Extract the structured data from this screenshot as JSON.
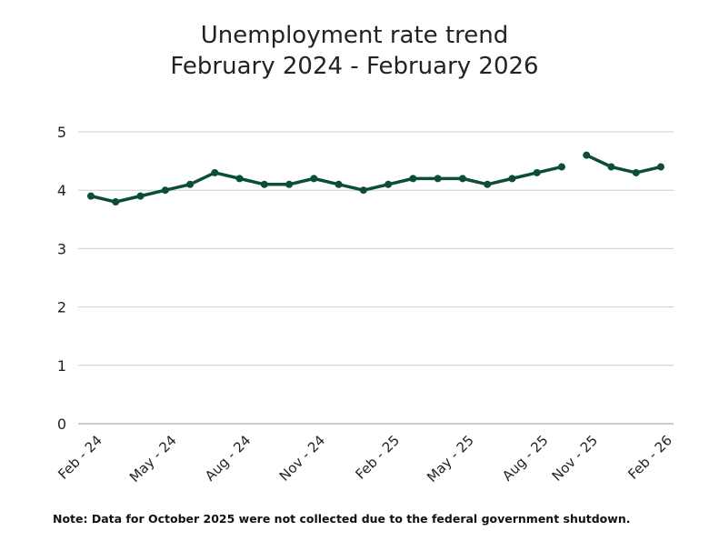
{
  "chart_data": {
    "type": "line",
    "title": "Unemployment rate trend",
    "subtitle": "February 2024 - February 2026",
    "xlabel": "",
    "ylabel": "",
    "ylim": [
      0,
      5
    ],
    "yticks": [
      0,
      1,
      2,
      3,
      4,
      5
    ],
    "grid": true,
    "legend": "none",
    "line_color": "#0b4d3c",
    "x": [
      "Feb-24",
      "Mar-24",
      "Apr-24",
      "May-24",
      "Jun-24",
      "Jul-24",
      "Aug-24",
      "Sep-24",
      "Oct-24",
      "Nov-24",
      "Dec-24",
      "Jan-25",
      "Feb-25",
      "Mar-25",
      "Apr-25",
      "May-25",
      "Jun-25",
      "Jul-25",
      "Aug-25",
      "Sep-25",
      "Nov-25",
      "Dec-25",
      "Jan-26",
      "Feb-26"
    ],
    "values": [
      3.9,
      3.8,
      3.9,
      4.0,
      4.1,
      4.3,
      4.2,
      4.1,
      4.1,
      4.2,
      4.1,
      4.0,
      4.1,
      4.2,
      4.2,
      4.2,
      4.1,
      4.2,
      4.3,
      4.4,
      4.6,
      4.4,
      4.3,
      4.4
    ],
    "gap_after": "Sep-25",
    "xtick_labels": [
      {
        "at": "Feb-24",
        "label": "Feb - 24"
      },
      {
        "at": "May-24",
        "label": "May - 24"
      },
      {
        "at": "Aug-24",
        "label": "Aug - 24"
      },
      {
        "at": "Nov-24",
        "label": "Nov - 24"
      },
      {
        "at": "Feb-25",
        "label": "Feb - 25"
      },
      {
        "at": "May-25",
        "label": "May - 25"
      },
      {
        "at": "Aug-25",
        "label": "Aug - 25"
      },
      {
        "at": "Nov-25",
        "label": "Nov - 25"
      },
      {
        "at": "Feb-26",
        "label": "Feb - 26"
      }
    ]
  },
  "note": "Note: Data for October 2025 were not collected due to the federal government shutdown."
}
